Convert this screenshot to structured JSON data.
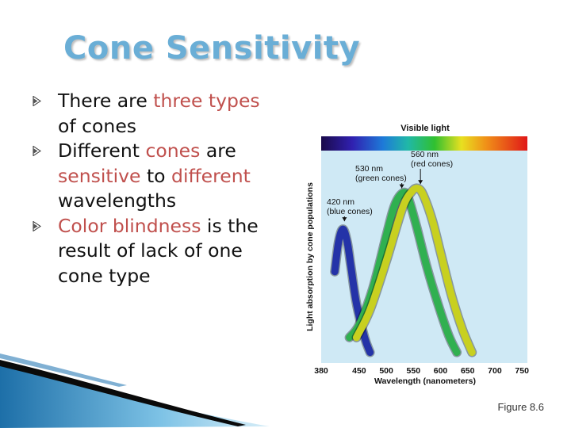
{
  "slide": {
    "title": "Cone Sensitivity",
    "bullets": [
      [
        {
          "t": "There are ",
          "hl": false
        },
        {
          "t": "three",
          "hl": true
        },
        {
          "t": " ",
          "hl": false
        },
        {
          "t": "types",
          "hl": true
        },
        {
          "t": " of cones",
          "hl": false
        }
      ],
      [
        {
          "t": "Different ",
          "hl": false
        },
        {
          "t": "cones",
          "hl": true
        },
        {
          "t": " are ",
          "hl": false
        },
        {
          "t": "sensitive",
          "hl": true
        },
        {
          "t": " to ",
          "hl": false
        },
        {
          "t": "different",
          "hl": true
        },
        {
          "t": " wavelengths",
          "hl": false
        }
      ],
      [
        {
          "t": "Color blindness",
          "hl": true
        },
        {
          "t": " is the result of lack of one cone type",
          "hl": false
        }
      ]
    ],
    "figure_caption": "Figure 8.6",
    "colors": {
      "title": "#6aaed6",
      "highlight": "#c0504d",
      "plot_bg": "#cfe9f5"
    }
  },
  "chart_data": {
    "type": "line",
    "title": "Visible light",
    "xlabel": "Wavelength (nanometers)",
    "ylabel": "Light absorption by cone populations",
    "xlim": [
      380,
      760
    ],
    "ylim": [
      0,
      1
    ],
    "xticks": [
      "380",
      "450",
      "500",
      "550",
      "600",
      "650",
      "700",
      "750"
    ],
    "series": [
      {
        "name": "blue cones",
        "color": "#2433a8",
        "x": [
          405,
          412,
          420,
          428,
          435,
          445,
          460,
          470
        ],
        "y": [
          0.43,
          0.57,
          0.63,
          0.57,
          0.45,
          0.28,
          0.12,
          0.05
        ]
      },
      {
        "name": "green cones",
        "color": "#30b050",
        "x": [
          432,
          450,
          475,
          500,
          515,
          530,
          540,
          555,
          575,
          595,
          615,
          630
        ],
        "y": [
          0.12,
          0.18,
          0.35,
          0.6,
          0.74,
          0.8,
          0.78,
          0.65,
          0.45,
          0.28,
          0.13,
          0.05
        ]
      },
      {
        "name": "red cones",
        "color": "#c8d020",
        "x": [
          445,
          470,
          500,
          530,
          548,
          560,
          570,
          585,
          600,
          620,
          640,
          658
        ],
        "y": [
          0.12,
          0.25,
          0.48,
          0.73,
          0.81,
          0.82,
          0.78,
          0.67,
          0.52,
          0.32,
          0.16,
          0.05
        ]
      }
    ],
    "annotations": [
      {
        "lines": [
          "560 nm",
          "(red cones)"
        ],
        "x": 560,
        "y": 0.82
      },
      {
        "lines": [
          "530 nm",
          "(green cones)"
        ],
        "x": 530,
        "y": 0.8
      },
      {
        "lines": [
          "420 nm",
          "(blue cones)"
        ],
        "x": 420,
        "y": 0.63
      }
    ]
  }
}
